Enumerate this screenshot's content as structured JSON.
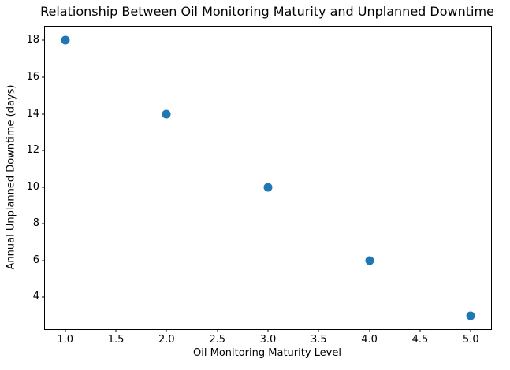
{
  "chart_data": {
    "type": "scatter",
    "title": "Relationship Between Oil Monitoring Maturity and Unplanned Downtime",
    "xlabel": "Oil Monitoring Maturity Level",
    "ylabel": "Annual Unplanned Downtime (days)",
    "x": [
      1,
      2,
      3,
      4,
      5
    ],
    "y": [
      18,
      14,
      10,
      6,
      3
    ],
    "xlim": [
      0.8,
      5.2
    ],
    "ylim": [
      2.25,
      18.75
    ],
    "xticks": [
      1.0,
      1.5,
      2.0,
      2.5,
      3.0,
      3.5,
      4.0,
      4.5,
      5.0
    ],
    "xtick_labels": [
      "1.0",
      "1.5",
      "2.0",
      "2.5",
      "3.0",
      "3.5",
      "4.0",
      "4.5",
      "5.0"
    ],
    "yticks": [
      4,
      6,
      8,
      10,
      12,
      14,
      16,
      18
    ],
    "ytick_labels": [
      "4",
      "6",
      "8",
      "10",
      "12",
      "14",
      "16",
      "18"
    ],
    "grid": false,
    "marker_color": "#1f77b4",
    "frame_color": "#000000",
    "background": "#ffffff"
  }
}
